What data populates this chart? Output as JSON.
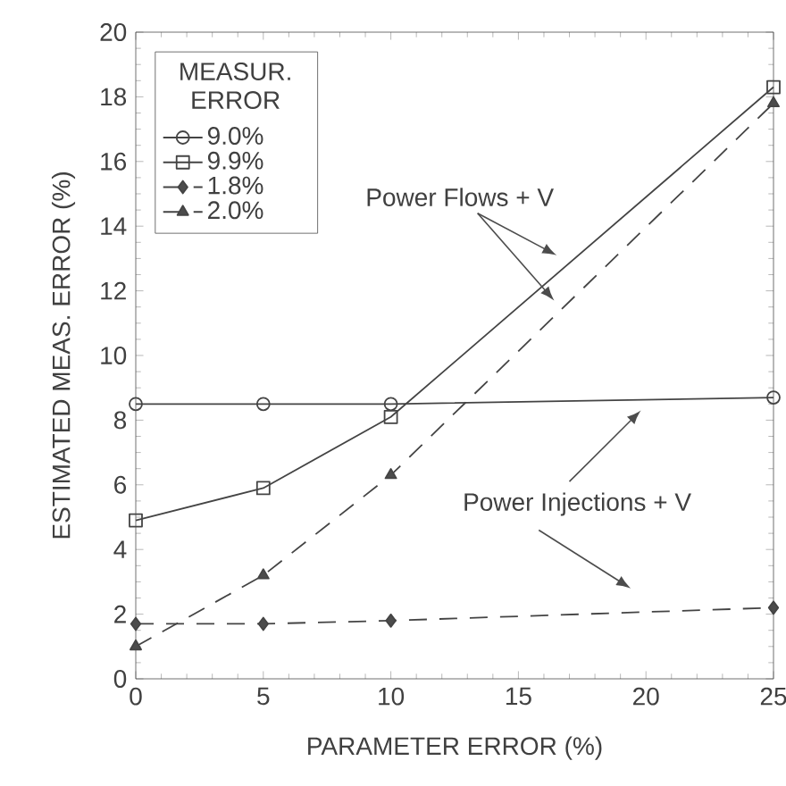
{
  "chart_data": {
    "type": "line",
    "xlabel": "PARAMETER ERROR (%)",
    "ylabel": "ESTIMATED MEAS. ERROR (%)",
    "legend_title": "MEASUR. ERROR",
    "legend": "top left",
    "x": [
      0,
      5,
      10,
      25
    ],
    "series": [
      {
        "name": "9.0%",
        "color": "#444444",
        "values": [
          8.5,
          8.5,
          8.5,
          8.7
        ],
        "marker": "circle",
        "line_style": "solid"
      },
      {
        "name": "9.9%",
        "color": "#444444",
        "values": [
          4.9,
          5.9,
          8.1,
          18.3
        ],
        "marker": "square",
        "line_style": "solid"
      },
      {
        "name": "1.8%",
        "color": "#444444",
        "values": [
          1.7,
          1.7,
          1.8,
          2.2
        ],
        "marker": "diamond",
        "line_style": "dashed"
      },
      {
        "name": "2.0%",
        "color": "#444444",
        "values": [
          1.0,
          3.2,
          6.3,
          17.8
        ],
        "marker": "triangle",
        "line_style": "dashed"
      }
    ],
    "xlim": [
      0,
      25
    ],
    "ylim": [
      0,
      20
    ],
    "xticks": [
      0,
      5,
      10,
      15,
      20,
      25
    ],
    "yticks": [
      0,
      2,
      4,
      6,
      8,
      10,
      12,
      14,
      16,
      18,
      20
    ],
    "annotations": [
      "Power Flows + V",
      "Power Injections + V"
    ]
  }
}
